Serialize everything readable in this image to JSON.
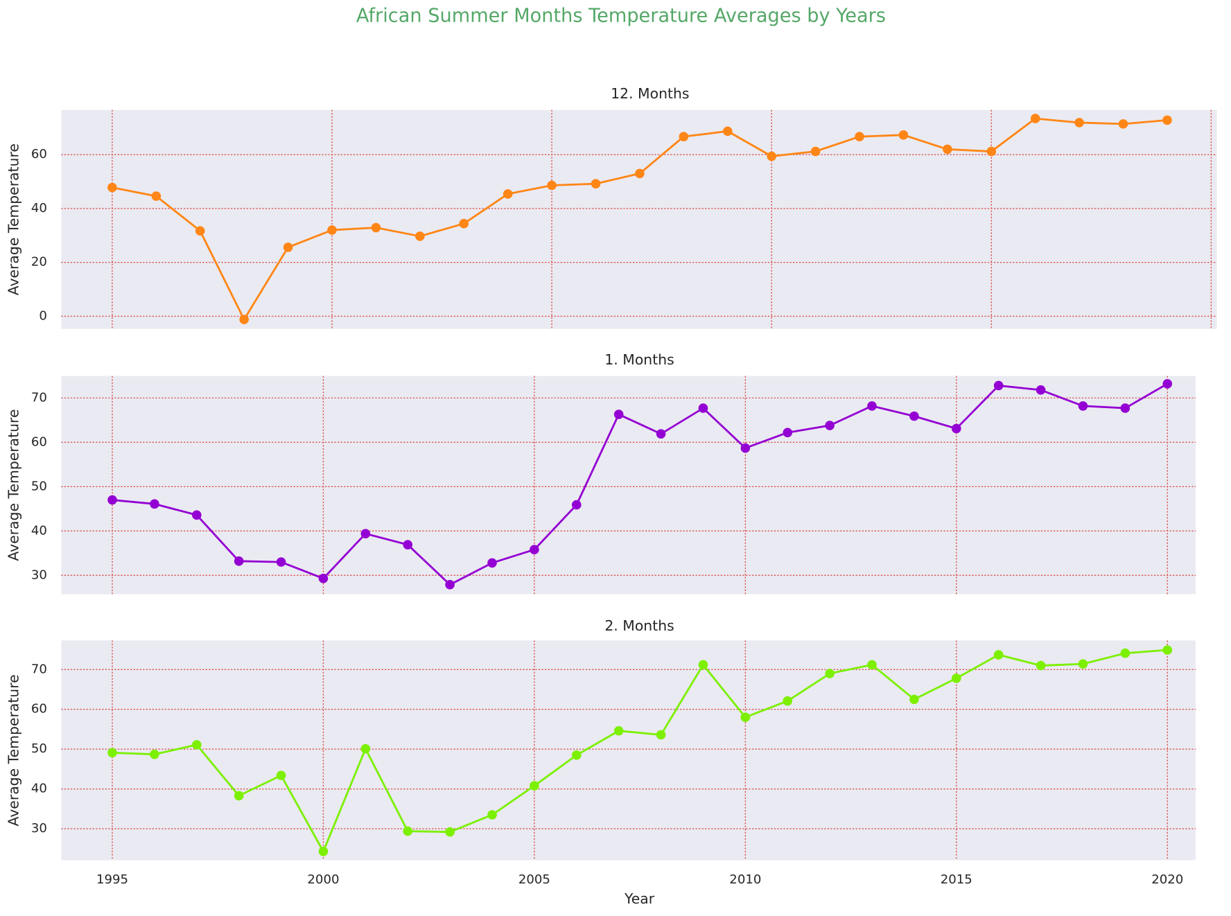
{
  "title": "African Summer Months Temperature Averages by Years",
  "chart_data": [
    {
      "type": "line",
      "title": "12. Months",
      "ylabel": "Average Temperature",
      "color": "#ff8616",
      "x": [
        1995,
        1996,
        1997,
        1998,
        1999,
        2000,
        2001,
        2002,
        2003,
        2004,
        2005,
        2006,
        2007,
        2008,
        2009,
        2010,
        2011,
        2012,
        2013,
        2014,
        2015,
        2016,
        2017,
        2018,
        2019
      ],
      "values": [
        47.8,
        44.6,
        31.7,
        -1.2,
        25.6,
        32.0,
        32.9,
        29.7,
        34.4,
        45.4,
        48.6,
        49.2,
        53.0,
        66.7,
        68.7,
        59.4,
        61.2,
        66.7,
        67.3,
        62.0,
        61.2,
        73.4,
        71.9,
        71.4,
        72.8
      ],
      "xlim": [
        1993.84,
        2020.13
      ],
      "xticks": [
        1995,
        2000,
        2005,
        2010,
        2015,
        2020
      ],
      "ylim": [
        -4.7,
        76.6
      ],
      "yticks": [
        0,
        20,
        40,
        60
      ],
      "grid": true
    },
    {
      "type": "line",
      "title": "1. Months",
      "ylabel": "Average Temperature",
      "color": "#9400d3",
      "x": [
        1995,
        1996,
        1997,
        1998,
        1999,
        2000,
        2001,
        2002,
        2003,
        2004,
        2005,
        2006,
        2007,
        2008,
        2009,
        2010,
        2011,
        2012,
        2013,
        2014,
        2015,
        2016,
        2017,
        2018,
        2019,
        2020
      ],
      "values": [
        47.0,
        46.1,
        43.6,
        33.2,
        33.0,
        29.3,
        39.4,
        36.9,
        27.9,
        32.8,
        35.8,
        45.9,
        66.3,
        61.9,
        67.7,
        58.7,
        62.2,
        63.8,
        68.2,
        65.9,
        63.1,
        72.8,
        71.8,
        68.2,
        67.7,
        73.2
      ],
      "xlim": [
        1993.79,
        2020.67
      ],
      "xticks": [
        1995,
        2000,
        2005,
        2010,
        2015,
        2020
      ],
      "ylim": [
        25.75,
        74.96
      ],
      "yticks": [
        30,
        40,
        50,
        60,
        70
      ],
      "grid": true
    },
    {
      "type": "line",
      "title": "2. Months",
      "ylabel": "Average Temperature",
      "xlabel": "Year",
      "color": "#7cf000",
      "x": [
        1995,
        1996,
        1997,
        1998,
        1999,
        2000,
        2001,
        2002,
        2003,
        2004,
        2005,
        2006,
        2007,
        2008,
        2009,
        2010,
        2011,
        2012,
        2013,
        2014,
        2015,
        2016,
        2017,
        2018,
        2019,
        2020
      ],
      "values": [
        49.1,
        48.7,
        51.1,
        38.3,
        43.4,
        24.3,
        50.1,
        29.4,
        29.2,
        33.5,
        40.8,
        48.5,
        54.6,
        53.6,
        71.2,
        58.0,
        62.1,
        69.0,
        71.2,
        62.5,
        67.8,
        73.7,
        71.0,
        71.4,
        74.1,
        74.9
      ],
      "xlim": [
        1993.79,
        2020.67
      ],
      "xticks": [
        1995,
        2000,
        2005,
        2010,
        2015,
        2020
      ],
      "ylim": [
        22.1,
        77.3
      ],
      "yticks": [
        30,
        40,
        50,
        60,
        70
      ],
      "grid": true
    }
  ]
}
